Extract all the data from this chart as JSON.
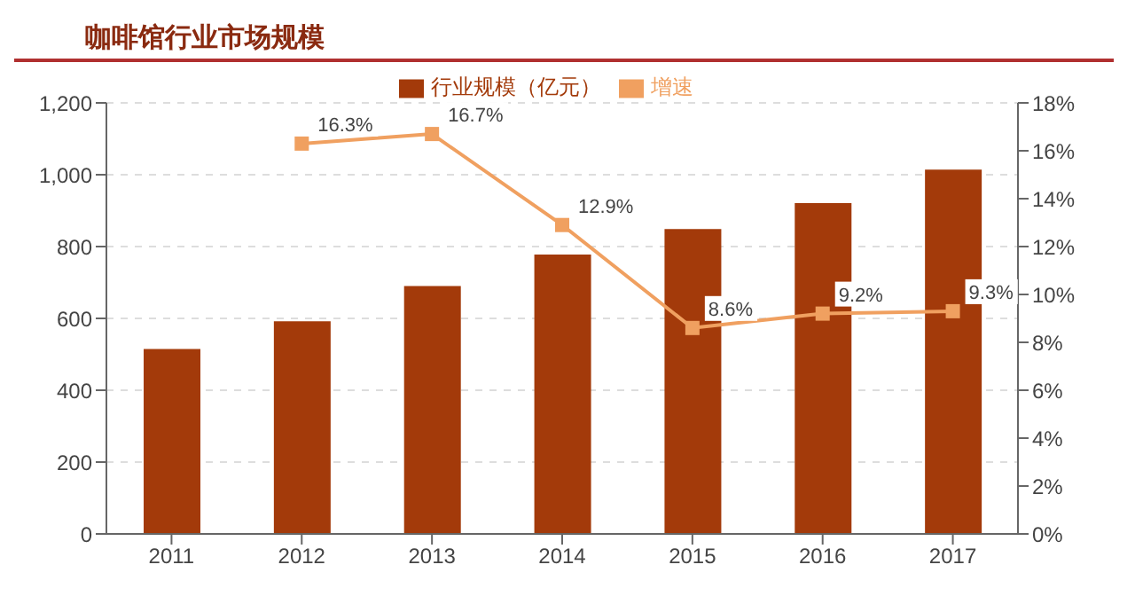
{
  "chart_data": {
    "type": "bar",
    "title": "咖啡馆行业市场规模",
    "categories": [
      "2011",
      "2012",
      "2013",
      "2014",
      "2015",
      "2016",
      "2017"
    ],
    "series": [
      {
        "name": "行业规模（亿元）",
        "color": "#a33a0a",
        "values": [
          515,
          592,
          690,
          778,
          849,
          921,
          1014
        ]
      },
      {
        "name": "增速",
        "type": "line",
        "axis": "y2",
        "color": "#f0a060",
        "values": [
          null,
          16.3,
          16.7,
          12.9,
          8.6,
          9.2,
          9.3
        ],
        "value_labels": [
          null,
          "16.3%",
          "16.7%",
          "12.9%",
          "8.6%",
          "9.2%",
          "9.3%"
        ]
      }
    ],
    "ylim": [
      0,
      1200
    ],
    "yticks": [
      0,
      {
        "value": 200,
        "label": "200"
      },
      {
        "value": 400,
        "label": "400"
      },
      {
        "value": 600,
        "label": "600"
      },
      {
        "value": 800,
        "label": "800"
      },
      {
        "value": 1000,
        "label": "1,000"
      },
      {
        "value": 1200,
        "label": "1,200"
      }
    ],
    "y2lim": [
      0,
      18
    ],
    "y2ticks": [
      {
        "value": 0,
        "label": "0%"
      },
      {
        "value": 2,
        "label": "2%"
      },
      {
        "value": 4,
        "label": "4%"
      },
      {
        "value": 6,
        "label": "6%"
      },
      {
        "value": 8,
        "label": "8%"
      },
      {
        "value": 10,
        "label": "10%"
      },
      {
        "value": 12,
        "label": "12%"
      },
      {
        "value": 14,
        "label": "14%"
      },
      {
        "value": 16,
        "label": "16%"
      },
      {
        "value": 18,
        "label": "18%"
      }
    ],
    "grid": "y",
    "legend": "top",
    "marker": "square"
  }
}
